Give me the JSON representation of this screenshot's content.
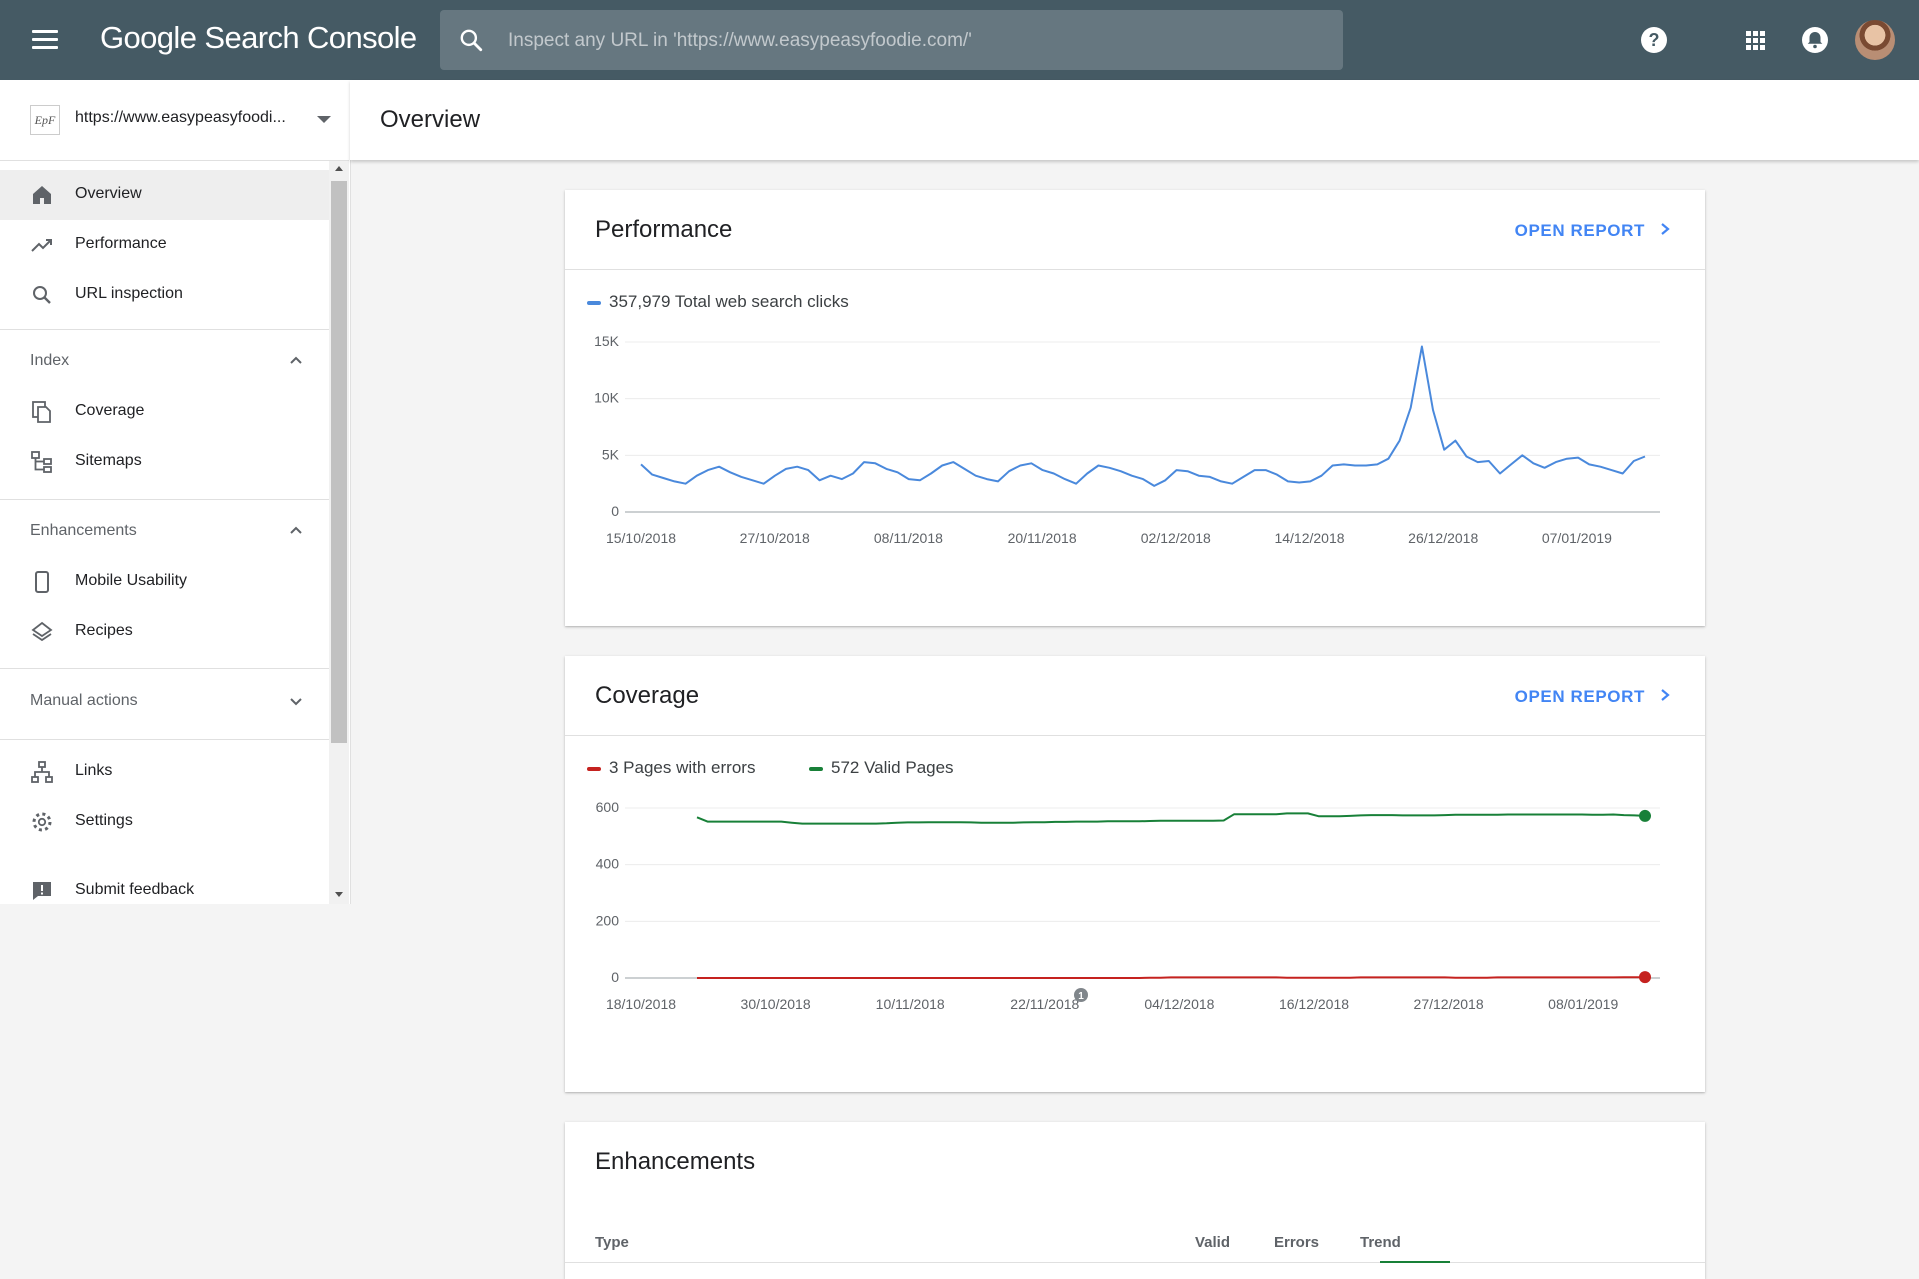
{
  "app": {
    "title": "Google Search Console",
    "search_placeholder": "Inspect any URL in 'https://www.easypeasyfoodie.com/'",
    "icons": [
      "menu-icon",
      "search-icon",
      "help-icon",
      "apps-icon",
      "notifications-icon",
      "avatar"
    ]
  },
  "property": {
    "url": "https://www.easypeasyfoodi...",
    "logo_text": "EpF"
  },
  "sidebar": {
    "items": [
      {
        "label": "Overview",
        "icon": "home-icon",
        "active": true
      },
      {
        "label": "Performance",
        "icon": "trending-up-icon"
      },
      {
        "label": "URL inspection",
        "icon": "search-icon"
      },
      {
        "label": "Coverage",
        "icon": "pages-icon"
      },
      {
        "label": "Sitemaps",
        "icon": "sitemap-icon"
      },
      {
        "label": "Mobile Usability",
        "icon": "phone-icon"
      },
      {
        "label": "Recipes",
        "icon": "layers-icon"
      },
      {
        "label": "Links",
        "icon": "links-icon"
      },
      {
        "label": "Settings",
        "icon": "gear-icon"
      },
      {
        "label": "Submit feedback",
        "icon": "feedback-icon"
      }
    ],
    "sections": [
      {
        "label": "Index",
        "expanded": true
      },
      {
        "label": "Enhancements",
        "expanded": true
      },
      {
        "label": "Manual actions",
        "expanded": false
      }
    ]
  },
  "page": {
    "title": "Overview"
  },
  "performance_card": {
    "title": "Performance",
    "link": "OPEN REPORT",
    "legend": "357,979 Total web search clicks",
    "color": "#4a89dc"
  },
  "coverage_card": {
    "title": "Coverage",
    "link": "OPEN REPORT",
    "legend_errors": "3 Pages with errors",
    "legend_valid": "572 Valid Pages",
    "error_color": "#c5221f",
    "valid_color": "#188038",
    "annotation": "1"
  },
  "enhancements_card": {
    "title": "Enhancements",
    "columns": [
      "Type",
      "Valid",
      "Errors",
      "Trend"
    ]
  },
  "chart_data": [
    {
      "type": "line",
      "title": "Performance",
      "series": [
        {
          "name": "357,979 Total web search clicks",
          "values": [
            4200,
            3300,
            3000,
            2700,
            2500,
            3200,
            3700,
            4000,
            3500,
            3100,
            2800,
            2500,
            3200,
            3800,
            4000,
            3700,
            2800,
            3200,
            2900,
            3400,
            4400,
            4300,
            3800,
            3500,
            2900,
            2800,
            3400,
            4100,
            4400,
            3800,
            3200,
            2900,
            2700,
            3600,
            4100,
            4300,
            3700,
            3400,
            2900,
            2500,
            3400,
            4100,
            3900,
            3600,
            3200,
            2900,
            2300,
            2800,
            3700,
            3600,
            3200,
            3100,
            2700,
            2500,
            3100,
            3700,
            3700,
            3300,
            2700,
            2600,
            2700,
            3200,
            4100,
            4200,
            4100,
            4100,
            4200,
            4700,
            6300,
            9200,
            14600,
            9000,
            5500,
            6300,
            4900,
            4400,
            4500,
            3400,
            4200,
            5000,
            4300,
            3900,
            4400,
            4700,
            4800,
            4200,
            4000,
            3700,
            3400,
            4500,
            4900
          ]
        }
      ],
      "x_tick_labels": [
        "15/10/2018",
        "27/10/2018",
        "08/11/2018",
        "20/11/2018",
        "02/12/2018",
        "14/12/2018",
        "26/12/2018",
        "07/01/2019"
      ],
      "y_ticks": [
        "0",
        "5K",
        "10K",
        "15K"
      ],
      "ylim": [
        0,
        15000
      ],
      "grid": true
    },
    {
      "type": "line",
      "title": "Coverage",
      "series": [
        {
          "name": "572 Valid Pages",
          "values": [
            567,
            552,
            552,
            552,
            552,
            552,
            552,
            552,
            552,
            548,
            545,
            545,
            545,
            545,
            545,
            545,
            545,
            545,
            546,
            548,
            549,
            549,
            550,
            550,
            550,
            550,
            549,
            548,
            548,
            548,
            548,
            549,
            550,
            550,
            551,
            551,
            552,
            552,
            552,
            553,
            553,
            553,
            553,
            554,
            555,
            555,
            555,
            555,
            555,
            555,
            556,
            578,
            578,
            578,
            578,
            578,
            581,
            581,
            581,
            571,
            571,
            571,
            572,
            574,
            575,
            575,
            575,
            574,
            574,
            574,
            574,
            575,
            576,
            576,
            576,
            576,
            576,
            577,
            577,
            577,
            577,
            577,
            577,
            577,
            577,
            576,
            576,
            577,
            575,
            574,
            572
          ]
        },
        {
          "name": "3 Pages with errors",
          "values": [
            0,
            0,
            0,
            0,
            0,
            0,
            0,
            0,
            0,
            0,
            0,
            0,
            0,
            0,
            0,
            0,
            0,
            0,
            0,
            0,
            0,
            0,
            0,
            0,
            0,
            0,
            0,
            0,
            0,
            0,
            0,
            0,
            0,
            0,
            0,
            0,
            0,
            0,
            0,
            0,
            0,
            0,
            0,
            1,
            1,
            2,
            2,
            2,
            2,
            2,
            2,
            2,
            2,
            2,
            2,
            2,
            1,
            1,
            1,
            1,
            1,
            1,
            1,
            2,
            2,
            2,
            2,
            2,
            2,
            2,
            2,
            2,
            1,
            1,
            1,
            1,
            2,
            2,
            2,
            2,
            2,
            2,
            2,
            2,
            2,
            2,
            2,
            2,
            3,
            3,
            3
          ]
        }
      ],
      "x_tick_labels": [
        "18/10/2018",
        "30/10/2018",
        "10/11/2018",
        "22/11/2018",
        "04/12/2018",
        "16/12/2018",
        "27/12/2018",
        "08/01/2019"
      ],
      "y_ticks": [
        "0",
        "200",
        "400",
        "600"
      ],
      "ylim": [
        0,
        600
      ],
      "grid": true
    }
  ]
}
